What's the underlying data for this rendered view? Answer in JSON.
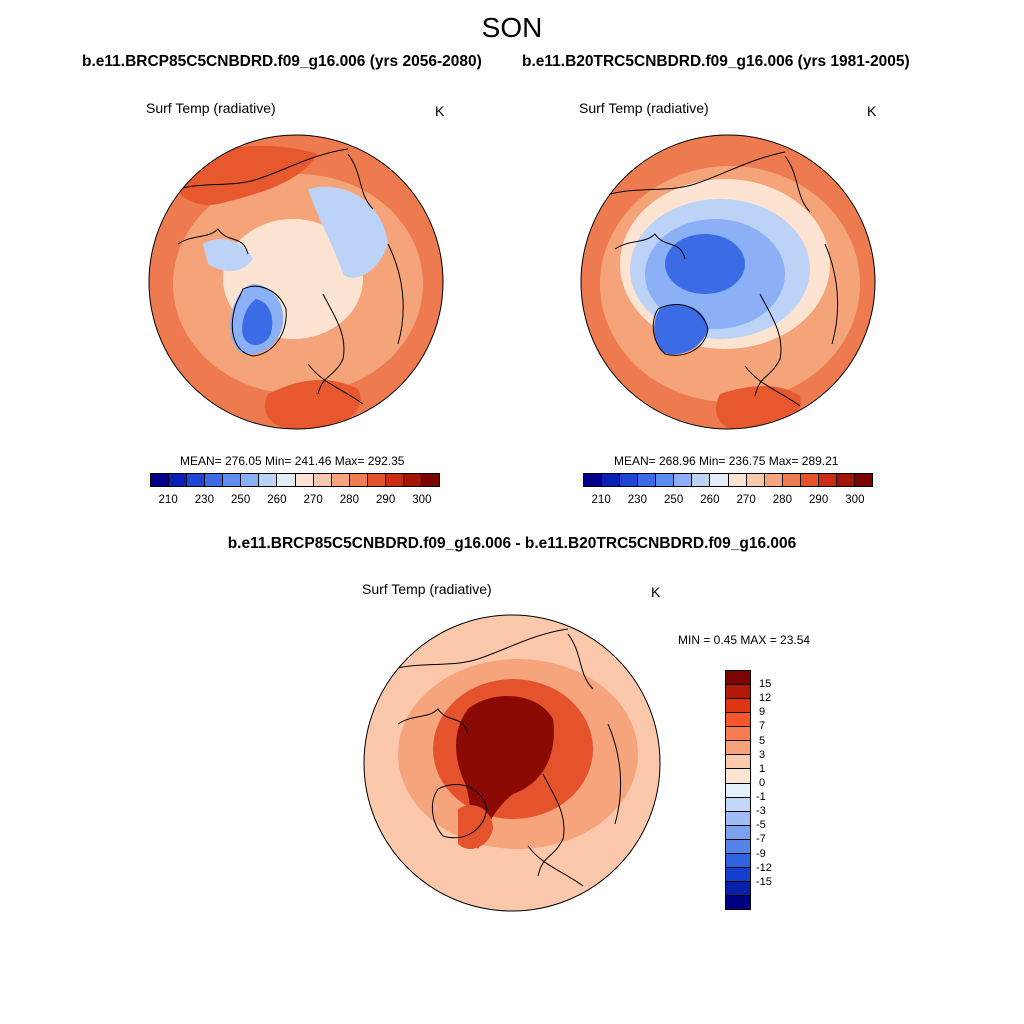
{
  "page": {
    "title": "SON"
  },
  "panels": [
    {
      "case_title": "b.e11.BRCP85C5CNBDRD.f09_g16.006 (yrs 2056-2080)",
      "variable": "Surf Temp (radiative)",
      "units": "K",
      "stats": "MEAN= 276.05  Min= 241.46  Max= 292.35"
    },
    {
      "case_title": "b.e11.B20TRC5CNBDRD.f09_g16.006 (yrs 1981-2005)",
      "variable": "Surf Temp (radiative)",
      "units": "K",
      "stats": "MEAN= 268.96  Min= 236.75  Max= 289.21"
    }
  ],
  "difference": {
    "title": "b.e11.BRCP85C5CNBDRD.f09_g16.006 - b.e11.B20TRC5CNBDRD.f09_g16.006",
    "variable": "Surf Temp (radiative)",
    "units": "K",
    "stats": "MIN =   0.45 MAX =  23.54"
  },
  "colorbar_abs": {
    "colors": [
      "#00008b",
      "#0a1fb3",
      "#1e46d6",
      "#3c6be6",
      "#5f8cf0",
      "#8cb0f5",
      "#bcd2f7",
      "#e3eefa",
      "#fde4d2",
      "#fbc8ab",
      "#f6a47c",
      "#f07c52",
      "#e5532d",
      "#cc2c12",
      "#a31606",
      "#7a0503"
    ],
    "tick_labels": [
      "210",
      "230",
      "250",
      "260",
      "270",
      "280",
      "290",
      "300"
    ]
  },
  "colorbar_diff": {
    "colors": [
      "#7a0503",
      "#b01a08",
      "#e03512",
      "#f5562a",
      "#f77c4f",
      "#f8a27b",
      "#fbc9ab",
      "#fde6d6",
      "#e6f0fb",
      "#c3d7f7",
      "#9fbdf4",
      "#7aa2ef",
      "#5484ea",
      "#2e63e1",
      "#143fce",
      "#0821a8",
      "#000080"
    ],
    "tick_labels": [
      "15",
      "12",
      "9",
      "7",
      "5",
      "3",
      "1",
      "0",
      "-1",
      "-3",
      "-5",
      "-7",
      "-9",
      "-12",
      "-15"
    ]
  },
  "map_colors": {
    "ocean_warm": "#f5a47a",
    "ocean_hot": "#ee7a50",
    "land_hot": "#e8582f",
    "cool_light": "#fde4d2",
    "cool_blue": "#bcd2f7",
    "mid_blue": "#8cb0f5",
    "deep_blue": "#3c6be6",
    "diff_base": "#fbc8ab",
    "diff_mid": "#f6a47c",
    "diff_hot": "#e5532d",
    "diff_max": "#8b0a04"
  }
}
